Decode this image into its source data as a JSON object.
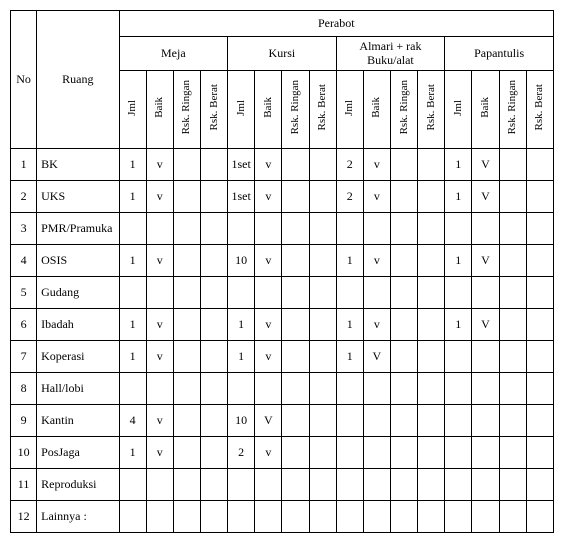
{
  "headers": {
    "no": "No",
    "ruang": "Ruang",
    "perabot": "Perabot",
    "groups": [
      "Meja",
      "Kursi",
      "Almari + rak\nBuku/alat",
      "Papantulis"
    ],
    "subcols": [
      "Jml",
      "Baik",
      "Rsk. Ringan",
      "Rsk. Berat"
    ]
  },
  "rows": [
    {
      "no": "1",
      "ruang": "BK",
      "meja": [
        "1",
        "v",
        "",
        ""
      ],
      "kursi": [
        "1set",
        "v",
        "",
        ""
      ],
      "almari": [
        "2",
        "v",
        "",
        ""
      ],
      "papan": [
        "1",
        "V",
        "",
        ""
      ]
    },
    {
      "no": "2",
      "ruang": "UKS",
      "meja": [
        "1",
        "v",
        "",
        ""
      ],
      "kursi": [
        "1set",
        "v",
        "",
        ""
      ],
      "almari": [
        "2",
        "v",
        "",
        ""
      ],
      "papan": [
        "1",
        "V",
        "",
        ""
      ]
    },
    {
      "no": "3",
      "ruang": "PMR/Pramuka",
      "meja": [
        "",
        "",
        "",
        ""
      ],
      "kursi": [
        "",
        "",
        "",
        ""
      ],
      "almari": [
        "",
        "",
        "",
        ""
      ],
      "papan": [
        "",
        "",
        "",
        ""
      ]
    },
    {
      "no": "4",
      "ruang": "OSIS",
      "meja": [
        "1",
        "v",
        "",
        ""
      ],
      "kursi": [
        "10",
        "v",
        "",
        ""
      ],
      "almari": [
        "1",
        "v",
        "",
        ""
      ],
      "papan": [
        "1",
        "V",
        "",
        ""
      ]
    },
    {
      "no": "5",
      "ruang": "Gudang",
      "meja": [
        "",
        "",
        "",
        ""
      ],
      "kursi": [
        "",
        "",
        "",
        ""
      ],
      "almari": [
        "",
        "",
        "",
        ""
      ],
      "papan": [
        "",
        "",
        "",
        ""
      ]
    },
    {
      "no": "6",
      "ruang": "Ibadah",
      "meja": [
        "1",
        "v",
        "",
        ""
      ],
      "kursi": [
        "1",
        "v",
        "",
        ""
      ],
      "almari": [
        "1",
        "v",
        "",
        ""
      ],
      "papan": [
        "1",
        "V",
        "",
        ""
      ]
    },
    {
      "no": "7",
      "ruang": "Koperasi",
      "meja": [
        "1",
        "v",
        "",
        ""
      ],
      "kursi": [
        "1",
        "v",
        "",
        ""
      ],
      "almari": [
        "1",
        "V",
        "",
        ""
      ],
      "papan": [
        "",
        "",
        "",
        ""
      ]
    },
    {
      "no": "8",
      "ruang": "Hall/lobi",
      "meja": [
        "",
        "",
        "",
        ""
      ],
      "kursi": [
        "",
        "",
        "",
        ""
      ],
      "almari": [
        "",
        "",
        "",
        ""
      ],
      "papan": [
        "",
        "",
        "",
        ""
      ]
    },
    {
      "no": "9",
      "ruang": "Kantin",
      "meja": [
        "4",
        "v",
        "",
        ""
      ],
      "kursi": [
        "10",
        "V",
        "",
        ""
      ],
      "almari": [
        "",
        "",
        "",
        ""
      ],
      "papan": [
        "",
        "",
        "",
        ""
      ]
    },
    {
      "no": "10",
      "ruang": "PosJaga",
      "meja": [
        "1",
        "v",
        "",
        ""
      ],
      "kursi": [
        "2",
        "v",
        "",
        ""
      ],
      "almari": [
        "",
        "",
        "",
        ""
      ],
      "papan": [
        "",
        "",
        "",
        ""
      ]
    },
    {
      "no": "11",
      "ruang": "Reproduksi",
      "meja": [
        "",
        "",
        "",
        ""
      ],
      "kursi": [
        "",
        "",
        "",
        ""
      ],
      "almari": [
        "",
        "",
        "",
        ""
      ],
      "papan": [
        "",
        "",
        "",
        ""
      ]
    },
    {
      "no": "12",
      "ruang": "Lainnya :",
      "meja": [
        "",
        "",
        "",
        ""
      ],
      "kursi": [
        "",
        "",
        "",
        ""
      ],
      "almari": [
        "",
        "",
        "",
        ""
      ],
      "papan": [
        "",
        "",
        "",
        ""
      ]
    }
  ]
}
